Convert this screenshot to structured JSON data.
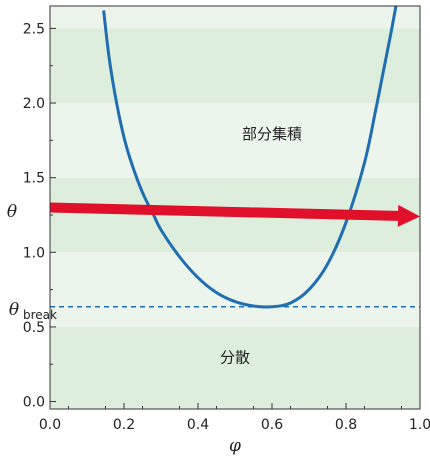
{
  "chart_data": {
    "type": "line",
    "xlabel": "φ",
    "ylabel": "θ",
    "xlim": [
      0.0,
      1.0
    ],
    "ylim": [
      -0.05,
      2.65
    ],
    "x_ticks": [
      "0.0",
      "0.2",
      "0.4",
      "0.6",
      "0.8",
      "1.0"
    ],
    "x_tick_values": [
      0.0,
      0.2,
      0.4,
      0.6,
      0.8,
      1.0
    ],
    "y_ticks": [
      "0.0",
      "0.5",
      "1.0",
      "1.5",
      "2.0",
      "2.5"
    ],
    "y_tick_values": [
      0.0,
      0.5,
      1.0,
      1.5,
      2.0,
      2.5
    ],
    "bands": [
      {
        "from": -0.05,
        "to": 0.5,
        "color": "#ddeedd"
      },
      {
        "from": 0.5,
        "to": 1.0,
        "color": "#ecf5ec"
      },
      {
        "from": 1.0,
        "to": 1.5,
        "color": "#ddeedd"
      },
      {
        "from": 1.5,
        "to": 2.0,
        "color": "#ecf5ec"
      },
      {
        "from": 2.0,
        "to": 2.5,
        "color": "#ddeedd"
      },
      {
        "from": 2.5,
        "to": 2.65,
        "color": "#ecf5ec"
      }
    ],
    "curve": {
      "color": "#1f6eb0",
      "x": [
        0.145,
        0.16,
        0.18,
        0.2,
        0.22,
        0.25,
        0.28,
        0.3,
        0.35,
        0.4,
        0.45,
        0.5,
        0.55,
        0.6,
        0.65,
        0.7,
        0.75,
        0.8,
        0.85,
        0.88,
        0.9,
        0.92,
        0.935
      ],
      "y": [
        2.62,
        2.3,
        2.0,
        1.77,
        1.6,
        1.4,
        1.25,
        1.15,
        0.97,
        0.83,
        0.73,
        0.67,
        0.64,
        0.635,
        0.66,
        0.75,
        0.92,
        1.2,
        1.6,
        1.95,
        2.2,
        2.45,
        2.65
      ]
    },
    "threshold": {
      "y": 0.635,
      "label": "θ",
      "label_sub": "break",
      "color": "#1f6eb0"
    },
    "arrow": {
      "x_start": 0.0,
      "y_start": 1.3,
      "x_end": 1.0,
      "y_end": 1.24,
      "color": "#e0102a"
    },
    "region_labels": [
      {
        "text": "部分集積",
        "x": 0.6,
        "y": 1.76
      },
      {
        "text": "分散",
        "x": 0.5,
        "y": 0.26
      }
    ]
  }
}
